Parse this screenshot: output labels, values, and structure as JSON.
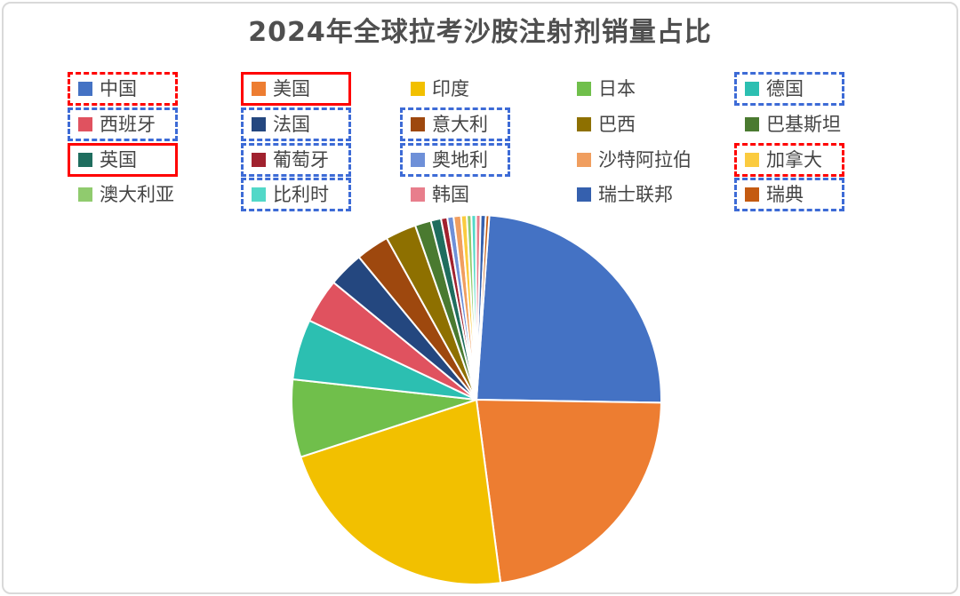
{
  "title": "2024年全球拉考沙胺注射剂销量占比",
  "chart_data": {
    "type": "pie",
    "title": "2024年全球拉考沙胺注射剂销量占比",
    "unit": "percent_share",
    "start_angle_deg": 4,
    "legend_position": "top, 5-column grid, 4 rows",
    "categories": [
      "中国",
      "美国",
      "印度",
      "日本",
      "德国",
      "西班牙",
      "法国",
      "意大利",
      "巴西",
      "巴基斯坦",
      "英国",
      "葡萄牙",
      "奥地利",
      "沙特阿拉伯",
      "加拿大",
      "澳大利亚",
      "比利时",
      "韩国",
      "瑞士联邦",
      "瑞典"
    ],
    "values": [
      24.2,
      22.7,
      22.1,
      6.8,
      5.3,
      3.9,
      3.1,
      2.9,
      2.7,
      1.4,
      0.9,
      0.55,
      0.55,
      0.65,
      0.5,
      0.4,
      0.4,
      0.4,
      0.45,
      0.3
    ],
    "colors": [
      "#4472C4",
      "#ED7D31",
      "#F2C000",
      "#70BF4B",
      "#2CBFB1",
      "#E0525F",
      "#24477F",
      "#9E480E",
      "#8E7000",
      "#4A7A30",
      "#1F6D5E",
      "#A0212E",
      "#6E90D8",
      "#F09E5F",
      "#FBCB3F",
      "#90CB6E",
      "#52D8C8",
      "#E87E8C",
      "#3560AE",
      "#C45B11"
    ]
  },
  "legend": {
    "columns": 5,
    "rows": 4,
    "items": [
      {
        "label": "中国",
        "color": "#4472C4",
        "box": "red-dashed"
      },
      {
        "label": "美国",
        "color": "#ED7D31",
        "box": "red-solid"
      },
      {
        "label": "印度",
        "color": "#F2C000",
        "box": "none"
      },
      {
        "label": "日本",
        "color": "#70BF4B",
        "box": "none"
      },
      {
        "label": "德国",
        "color": "#2CBFB1",
        "box": "blue-dashed"
      },
      {
        "label": "西班牙",
        "color": "#E0525F",
        "box": "blue-dashed"
      },
      {
        "label": "法国",
        "color": "#24477F",
        "box": "blue-dashed"
      },
      {
        "label": "意大利",
        "color": "#9E480E",
        "box": "blue-dashed"
      },
      {
        "label": "巴西",
        "color": "#8E7000",
        "box": "none"
      },
      {
        "label": "巴基斯坦",
        "color": "#4A7A30",
        "box": "none"
      },
      {
        "label": "英国",
        "color": "#1F6D5E",
        "box": "red-solid"
      },
      {
        "label": "葡萄牙",
        "color": "#A0212E",
        "box": "blue-dashed"
      },
      {
        "label": "奥地利",
        "color": "#6E90D8",
        "box": "blue-dashed"
      },
      {
        "label": "沙特阿拉伯",
        "color": "#F09E5F",
        "box": "none"
      },
      {
        "label": "加拿大",
        "color": "#FBCB3F",
        "box": "red-dashed"
      },
      {
        "label": "澳大利亚",
        "color": "#90CB6E",
        "box": "none"
      },
      {
        "label": "比利时",
        "color": "#52D8C8",
        "box": "blue-dashed"
      },
      {
        "label": "韩国",
        "color": "#E87E8C",
        "box": "none"
      },
      {
        "label": "瑞士联邦",
        "color": "#3560AE",
        "box": "none"
      },
      {
        "label": "瑞典",
        "color": "#C45B11",
        "box": "blue-dashed"
      }
    ]
  },
  "annotation_colors": {
    "red_box": "#FF0000",
    "blue_box": "#3D6BD6"
  }
}
